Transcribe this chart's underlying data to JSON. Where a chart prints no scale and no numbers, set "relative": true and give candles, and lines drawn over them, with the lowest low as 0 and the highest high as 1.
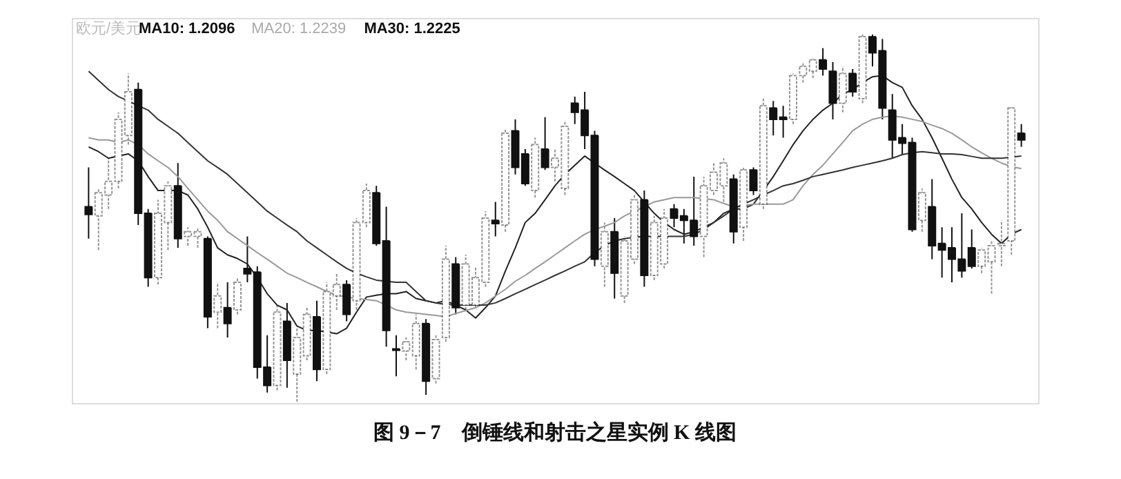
{
  "chart_data": {
    "type": "candlestick",
    "relative": true,
    "title": "图 9－7　倒锤线和射击之星实例 K 线图",
    "annotations": [
      "欧元/美元",
      "MA10: 1.2096",
      "MA20: 1.2239",
      "MA30: 1.2225"
    ],
    "categories": [
      null,
      null,
      null,
      null,
      null,
      null,
      null,
      null,
      null,
      null,
      null,
      null,
      null,
      null,
      null,
      null,
      null,
      null,
      null,
      null,
      null,
      null,
      null,
      null,
      null,
      null,
      null,
      null,
      null,
      null,
      null,
      null,
      null,
      null,
      null,
      null,
      null,
      null,
      null,
      null,
      null,
      null,
      null,
      null,
      null,
      null,
      null,
      null,
      null,
      null,
      null,
      null,
      null,
      null,
      null,
      null,
      null,
      null,
      null,
      null,
      null,
      null,
      null,
      null,
      null,
      null,
      null,
      null,
      null,
      null,
      null,
      null,
      null,
      null,
      null,
      null,
      null,
      null,
      null,
      null,
      null,
      null,
      null,
      null,
      null,
      null,
      null,
      null,
      null,
      null,
      null,
      null,
      null,
      null,
      null
    ],
    "grid": false,
    "tick_labels": false,
    "series": [
      {
        "color": "#111111",
        "ohlc": [
          [
            0.531,
            0.638,
            0.444,
            0.51
          ],
          [
            0.506,
            0.581,
            0.413,
            0.569
          ],
          [
            0.563,
            0.663,
            0.525,
            0.6
          ],
          [
            0.6,
            0.788,
            0.581,
            0.769
          ],
          [
            0.725,
            0.894,
            0.7,
            0.844
          ],
          [
            0.85,
            0.869,
            0.481,
            0.513
          ],
          [
            0.513,
            0.525,
            0.313,
            0.338
          ],
          [
            0.338,
            0.55,
            0.319,
            0.513
          ],
          [
            0.488,
            0.6,
            0.413,
            0.588
          ],
          [
            0.588,
            0.65,
            0.419,
            0.444
          ],
          [
            0.45,
            0.475,
            0.425,
            0.463
          ],
          [
            0.45,
            0.475,
            0.419,
            0.463
          ],
          [
            0.444,
            0.45,
            0.2,
            0.231
          ],
          [
            0.244,
            0.325,
            0.2,
            0.288
          ],
          [
            0.256,
            0.325,
            0.175,
            0.213
          ],
          [
            0.25,
            0.338,
            0.238,
            0.325
          ],
          [
            0.363,
            0.45,
            0.325,
            0.348
          ],
          [
            0.353,
            0.369,
            0.063,
            0.094
          ],
          [
            0.094,
            0.181,
            0.025,
            0.044
          ],
          [
            0.044,
            0.263,
            0.031,
            0.244
          ],
          [
            0.219,
            0.269,
            0.038,
            0.113
          ],
          [
            0.075,
            0.2,
            0,
            0.175
          ],
          [
            0.125,
            0.256,
            0.113,
            0.238
          ],
          [
            0.231,
            0.275,
            0.056,
            0.088
          ],
          [
            0.088,
            0.325,
            0.075,
            0.3
          ],
          [
            0.288,
            0.35,
            0.25,
            0.319
          ],
          [
            0.319,
            0.331,
            0.219,
            0.238
          ],
          [
            0.275,
            0.5,
            0.25,
            0.488
          ],
          [
            0.488,
            0.594,
            0.475,
            0.575
          ],
          [
            0.569,
            0.588,
            0.425,
            0.431
          ],
          [
            0.438,
            0.531,
            0.15,
            0.194
          ],
          [
            0.144,
            0.181,
            0.069,
            0.14
          ],
          [
            0.138,
            0.175,
            0.113,
            0.163
          ],
          [
            0.125,
            0.238,
            0.088,
            0.213
          ],
          [
            0.213,
            0.225,
            0.019,
            0.056
          ],
          [
            0.063,
            0.181,
            0.05,
            0.169
          ],
          [
            0.175,
            0.425,
            0.163,
            0.388
          ],
          [
            0.375,
            0.394,
            0.238,
            0.256
          ],
          [
            0.263,
            0.4,
            0.25,
            0.375
          ],
          [
            0.263,
            0.369,
            0.256,
            0.338
          ],
          [
            0.325,
            0.519,
            0.313,
            0.5
          ],
          [
            0.494,
            0.544,
            0.45,
            0.485
          ],
          [
            0.481,
            0.744,
            0.463,
            0.731
          ],
          [
            0.738,
            0.769,
            0.619,
            0.638
          ],
          [
            0.675,
            0.688,
            0.588,
            0.594
          ],
          [
            0.575,
            0.719,
            0.556,
            0.7
          ],
          [
            0.688,
            0.775,
            0.631,
            0.638
          ],
          [
            0.638,
            0.688,
            0.6,
            0.663
          ],
          [
            0.581,
            0.763,
            0.563,
            0.75
          ],
          [
            0.813,
            0.831,
            0.756,
            0.788
          ],
          [
            0.794,
            0.844,
            0.688,
            0.725
          ],
          [
            0.725,
            0.738,
            0.369,
            0.388
          ],
          [
            0.369,
            0.488,
            0.313,
            0.463
          ],
          [
            0.463,
            0.5,
            0.281,
            0.35
          ],
          [
            0.288,
            0.45,
            0.269,
            0.438
          ],
          [
            0.388,
            0.563,
            0.375,
            0.55
          ],
          [
            0.55,
            0.575,
            0.313,
            0.344
          ],
          [
            0.344,
            0.506,
            0.331,
            0.488
          ],
          [
            0.375,
            0.525,
            0.363,
            0.5
          ],
          [
            0.525,
            0.538,
            0.475,
            0.5
          ],
          [
            0.506,
            0.525,
            0.431,
            0.494
          ],
          [
            0.494,
            0.613,
            0.425,
            0.45
          ],
          [
            0.45,
            0.613,
            0.394,
            0.588
          ],
          [
            0.575,
            0.65,
            0.563,
            0.625
          ],
          [
            0.588,
            0.663,
            0.544,
            0.65
          ],
          [
            0.606,
            0.619,
            0.431,
            0.463
          ],
          [
            0.475,
            0.638,
            0.438,
            0.631
          ],
          [
            0.631,
            0.638,
            0.563,
            0.575
          ],
          [
            0.538,
            0.825,
            0.525,
            0.806
          ],
          [
            0.8,
            0.819,
            0.725,
            0.769
          ],
          [
            0.775,
            0.806,
            0.719,
            0.769
          ],
          [
            0.769,
            0.894,
            0.756,
            0.888
          ],
          [
            0.888,
            0.925,
            0.869,
            0.913
          ],
          [
            0.9,
            0.938,
            0.881,
            0.931
          ],
          [
            0.931,
            0.963,
            0.888,
            0.906
          ],
          [
            0.9,
            0.925,
            0.769,
            0.813
          ],
          [
            0.813,
            0.913,
            0.788,
            0.894
          ],
          [
            0.894,
            0.906,
            0.831,
            0.844
          ],
          [
            0.825,
            1.0,
            0.813,
            0.994
          ],
          [
            0.994,
            1.0,
            0.913,
            0.95
          ],
          [
            0.956,
            0.988,
            0.769,
            0.8
          ],
          [
            0.794,
            0.838,
            0.663,
            0.713
          ],
          [
            0.719,
            0.756,
            0.675,
            0.704
          ],
          [
            0.706,
            0.719,
            0.463,
            0.469
          ],
          [
            0.494,
            0.581,
            0.463,
            0.569
          ],
          [
            0.531,
            0.606,
            0.388,
            0.425
          ],
          [
            0.431,
            0.475,
            0.338,
            0.413
          ],
          [
            0.419,
            0.475,
            0.325,
            0.388
          ],
          [
            0.388,
            0.513,
            0.338,
            0.356
          ],
          [
            0.419,
            0.469,
            0.363,
            0.369
          ],
          [
            0.369,
            0.419,
            0.35,
            0.413
          ],
          [
            0.381,
            0.438,
            0.294,
            0.425
          ],
          [
            0.425,
            0.494,
            0.369,
            0.431
          ],
          [
            0.438,
            0.806,
            0.4,
            0.8
          ],
          [
            0.731,
            0.756,
            0.694,
            0.713
          ]
        ]
      },
      {
        "type": "line",
        "color": "#222222",
        "values": [
          0.694,
          0.681,
          0.663,
          0.669,
          0.675,
          0.656,
          0.613,
          0.575,
          0.575,
          0.575,
          0.563,
          0.525,
          0.475,
          0.419,
          0.4,
          0.39,
          0.375,
          0.338,
          0.294,
          0.263,
          0.25,
          0.206,
          0.194,
          0.194,
          0.19,
          0.185,
          0.2,
          0.244,
          0.285,
          0.29,
          0.294,
          0.294,
          0.3,
          0.281,
          0.275,
          0.269,
          0.275,
          0.263,
          0.25,
          0.228,
          0.256,
          0.288,
          0.356,
          0.419,
          0.488,
          0.513,
          0.55,
          0.588,
          0.619,
          0.644,
          0.669,
          0.65,
          0.631,
          0.613,
          0.594,
          0.575,
          0.544,
          0.513,
          0.488,
          0.469,
          0.456,
          0.463,
          0.475,
          0.488,
          0.513,
          0.525,
          0.525,
          0.538,
          0.575,
          0.613,
          0.656,
          0.7,
          0.738,
          0.769,
          0.794,
          0.813,
          0.838,
          0.85,
          0.869,
          0.885,
          0.888,
          0.869,
          0.856,
          0.806,
          0.769,
          0.719,
          0.663,
          0.606,
          0.556,
          0.525,
          0.488,
          0.456,
          0.431,
          0.456,
          0.469
        ]
      },
      {
        "type": "line",
        "color": "#999999",
        "values": [
          0.719,
          0.713,
          0.713,
          0.706,
          0.713,
          0.7,
          0.675,
          0.656,
          0.638,
          0.613,
          0.581,
          0.55,
          0.519,
          0.494,
          0.463,
          0.444,
          0.425,
          0.406,
          0.388,
          0.369,
          0.35,
          0.338,
          0.325,
          0.313,
          0.3,
          0.29,
          0.285,
          0.281,
          0.278,
          0.275,
          0.263,
          0.25,
          0.244,
          0.241,
          0.238,
          0.235,
          0.231,
          0.24,
          0.248,
          0.256,
          0.269,
          0.288,
          0.306,
          0.328,
          0.344,
          0.363,
          0.381,
          0.4,
          0.419,
          0.438,
          0.456,
          0.469,
          0.478,
          0.488,
          0.506,
          0.519,
          0.531,
          0.544,
          0.55,
          0.556,
          0.556,
          0.556,
          0.553,
          0.55,
          0.54,
          0.531,
          0.534,
          0.538,
          0.538,
          0.538,
          0.538,
          0.55,
          0.588,
          0.619,
          0.644,
          0.675,
          0.706,
          0.738,
          0.756,
          0.769,
          0.775,
          0.778,
          0.775,
          0.769,
          0.763,
          0.753,
          0.744,
          0.731,
          0.713,
          0.694,
          0.678,
          0.663,
          0.65,
          0.64,
          0.635
        ]
      },
      {
        "type": "line",
        "color": "#333333",
        "values": [
          0.9,
          0.875,
          0.85,
          0.831,
          0.819,
          0.806,
          0.794,
          0.769,
          0.75,
          0.731,
          0.706,
          0.681,
          0.656,
          0.638,
          0.619,
          0.594,
          0.569,
          0.544,
          0.519,
          0.5,
          0.481,
          0.463,
          0.438,
          0.419,
          0.4,
          0.381,
          0.363,
          0.35,
          0.34,
          0.331,
          0.328,
          0.325,
          0.325,
          0.3,
          0.275,
          0.269,
          0.265,
          0.263,
          0.263,
          0.263,
          0.263,
          0.269,
          0.281,
          0.294,
          0.306,
          0.319,
          0.331,
          0.344,
          0.356,
          0.369,
          0.381,
          0.406,
          0.425,
          0.438,
          0.444,
          0.448,
          0.45,
          0.45,
          0.45,
          0.45,
          0.45,
          0.456,
          0.469,
          0.488,
          0.506,
          0.525,
          0.538,
          0.55,
          0.563,
          0.575,
          0.588,
          0.594,
          0.603,
          0.613,
          0.619,
          0.625,
          0.631,
          0.638,
          0.644,
          0.65,
          0.656,
          0.663,
          0.673,
          0.678,
          0.681,
          0.678,
          0.675,
          0.675,
          0.673,
          0.668,
          0.663,
          0.663,
          0.663,
          0.666,
          0.669
        ]
      }
    ]
  }
}
